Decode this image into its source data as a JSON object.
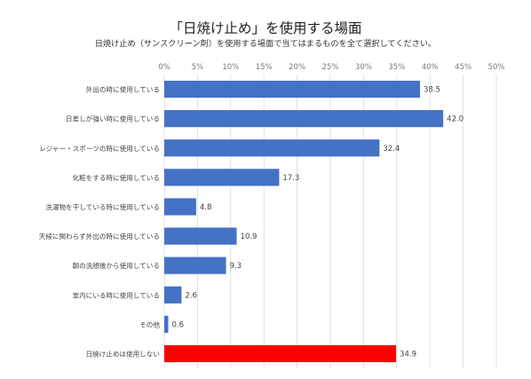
{
  "chart_data": {
    "type": "bar",
    "orientation": "horizontal",
    "title": "「日焼け止め」を使用する場面",
    "subtitle": "日焼け止め（サンスクリーン剤）を使用する場面で当てはまるものを全て選択してください。",
    "x_ticks": [
      "0%",
      "5%",
      "10%",
      "15%",
      "20%",
      "25%",
      "30%",
      "35%",
      "40%",
      "45%",
      "50%"
    ],
    "xlim": [
      0,
      50
    ],
    "grid": true,
    "categories": [
      "外出の時に使用している",
      "日差しが強い時に使用している",
      "レジャー・スポーツの時に使用している",
      "化粧をする時に使用している",
      "洗濯物を干している時に使用している",
      "天候に関わらず外出の時に使用している",
      "朝の洗顔後から使用している",
      "室内にいる時に使用している",
      "その他",
      "日焼け止めは使用しない"
    ],
    "values": [
      38.5,
      42.0,
      32.4,
      17.3,
      4.8,
      10.9,
      9.3,
      2.6,
      0.6,
      34.9
    ],
    "value_labels": [
      "38.5",
      "42.0",
      "32.4",
      "17.3",
      "4.8",
      "10.9",
      "9.3",
      "2.6",
      "0.6",
      "34.9"
    ],
    "colors": {
      "default": "#4472c4",
      "highlight": "#ff0000"
    },
    "highlight_index": 9
  }
}
